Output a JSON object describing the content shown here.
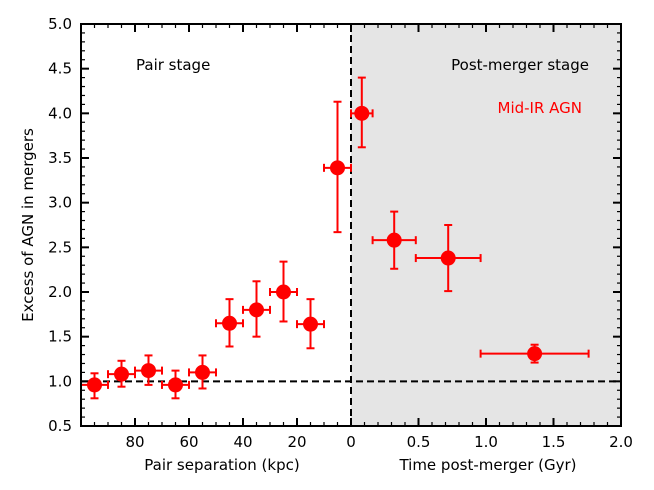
{
  "chart_data": {
    "type": "scatter",
    "ylabel": "Excess of AGN in mergers",
    "xlabel_left": "Pair separation (kpc)",
    "xlabel_right": "Time post-merger (Gyr)",
    "ylim": [
      0.5,
      5.0
    ],
    "yticks": [
      "0.5",
      "1.0",
      "1.5",
      "2.0",
      "2.5",
      "3.0",
      "3.5",
      "4.0",
      "4.5",
      "5.0"
    ],
    "pair_xlim": [
      100,
      0
    ],
    "pair_xticks": [
      "80",
      "60",
      "40",
      "20",
      "0"
    ],
    "post_xlim": [
      0,
      2.0
    ],
    "post_xticks": [
      "0.5",
      "1.0",
      "1.5",
      "2.0"
    ],
    "reference_line_y": 1.0,
    "annotations": {
      "pair_stage": "Pair stage",
      "post_stage": "Post-merger stage",
      "series_label": "Mid-IR AGN"
    },
    "series": [
      {
        "name": "Mid-IR AGN",
        "color": "#ff0000",
        "pair_points": [
          {
            "sep": 95,
            "y": 0.96,
            "xerr": 5,
            "ylo": 0.15,
            "yhi": 0.13
          },
          {
            "sep": 85,
            "y": 1.08,
            "xerr": 5,
            "ylo": 0.14,
            "yhi": 0.15
          },
          {
            "sep": 75,
            "y": 1.12,
            "xerr": 5,
            "ylo": 0.16,
            "yhi": 0.17
          },
          {
            "sep": 65,
            "y": 0.96,
            "xerr": 5,
            "ylo": 0.15,
            "yhi": 0.16
          },
          {
            "sep": 55,
            "y": 1.1,
            "xerr": 5,
            "ylo": 0.18,
            "yhi": 0.19
          },
          {
            "sep": 45,
            "y": 1.65,
            "xerr": 5,
            "ylo": 0.26,
            "yhi": 0.27
          },
          {
            "sep": 35,
            "y": 1.8,
            "xerr": 5,
            "ylo": 0.3,
            "yhi": 0.32
          },
          {
            "sep": 25,
            "y": 2.0,
            "xerr": 5,
            "ylo": 0.33,
            "yhi": 0.34
          },
          {
            "sep": 15,
            "y": 1.64,
            "xerr": 5,
            "ylo": 0.27,
            "yhi": 0.28
          },
          {
            "sep": 5,
            "y": 3.39,
            "xerr": 5,
            "ylo": 0.72,
            "yhi": 0.74
          }
        ],
        "post_points": [
          {
            "t": 0.08,
            "y": 4.0,
            "xerr": 0.08,
            "ylo": 0.38,
            "yhi": 0.4
          },
          {
            "t": 0.32,
            "y": 2.58,
            "xerr": 0.16,
            "ylo": 0.32,
            "yhi": 0.32
          },
          {
            "t": 0.72,
            "y": 2.38,
            "xerr": 0.24,
            "ylo": 0.37,
            "yhi": 0.37
          },
          {
            "t": 1.36,
            "y": 1.31,
            "xerr": 0.4,
            "ylo": 0.1,
            "yhi": 0.1
          }
        ]
      }
    ]
  }
}
